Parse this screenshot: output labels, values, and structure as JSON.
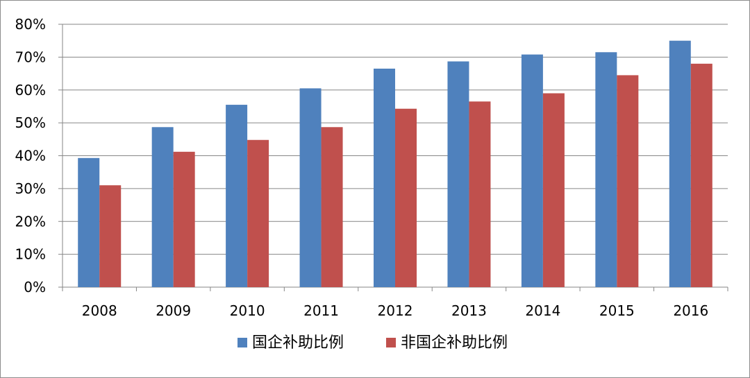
{
  "chart_data": {
    "type": "bar",
    "categories": [
      "2008",
      "2009",
      "2010",
      "2011",
      "2012",
      "2013",
      "2014",
      "2015",
      "2016"
    ],
    "series": [
      {
        "name": "国企补助比例",
        "color": "#4f81bd",
        "values": [
          39.3,
          48.7,
          55.5,
          60.5,
          66.5,
          68.7,
          70.8,
          71.5,
          75.0
        ]
      },
      {
        "name": "非国企补助比例",
        "color": "#c0504d",
        "values": [
          31.0,
          41.2,
          44.8,
          48.7,
          54.3,
          56.5,
          59.0,
          64.5,
          68.0
        ]
      }
    ],
    "y_ticks": [
      "0%",
      "10%",
      "20%",
      "30%",
      "40%",
      "50%",
      "60%",
      "70%",
      "80%"
    ],
    "ylim": [
      0,
      80
    ],
    "y_unit": "%",
    "grid": true,
    "legend_position": "bottom",
    "title": "",
    "xlabel": "",
    "ylabel": ""
  }
}
